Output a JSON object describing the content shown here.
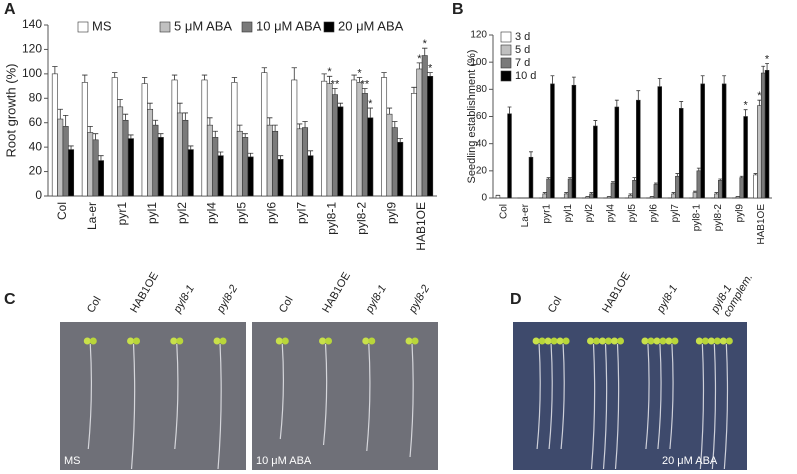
{
  "panels": [
    "A",
    "B",
    "C",
    "D"
  ],
  "chart_data": [
    {
      "type": "bar",
      "ylabel": "Root growth (%)",
      "legend": "top",
      "categories": [
        "Col",
        "La-er",
        "pyr1",
        "pyl1",
        "pyl2",
        "pyl4",
        "pyl5",
        "pyl6",
        "pyl7",
        "pyl8-1",
        "pyl8-2",
        "pyl9",
        "HAB1OE"
      ],
      "ylim": [
        0,
        140
      ],
      "yticks": [
        0,
        20,
        40,
        60,
        80,
        100,
        120,
        140
      ],
      "grid": false,
      "series": [
        {
          "name": "MS",
          "color": "#ffffff",
          "values": [
            100,
            93,
            97,
            92,
            95,
            95,
            93,
            101,
            95,
            94,
            95,
            97,
            84
          ],
          "errors": [
            6,
            6,
            4,
            5,
            4,
            4,
            4,
            4,
            10,
            6,
            4,
            4,
            5
          ],
          "significance": [
            null,
            null,
            null,
            null,
            null,
            null,
            null,
            null,
            null,
            null,
            null,
            null,
            null
          ]
        },
        {
          "name": "5 μM ABA",
          "color": "#c0c0c0",
          "values": [
            63,
            52,
            73,
            71,
            68,
            58,
            53,
            58,
            55,
            92,
            93,
            67,
            104
          ],
          "errors": [
            8,
            5,
            6,
            5,
            8,
            6,
            5,
            6,
            4,
            6,
            4,
            5,
            5
          ],
          "significance": [
            null,
            null,
            null,
            null,
            null,
            null,
            null,
            null,
            null,
            "*",
            "*",
            null,
            "*"
          ]
        },
        {
          "name": "10 μM ABA",
          "color": "#7a7a7a",
          "values": [
            57,
            46,
            62,
            58,
            62,
            48,
            48,
            53,
            56,
            83,
            84,
            56,
            115
          ],
          "errors": [
            9,
            5,
            5,
            4,
            6,
            5,
            3,
            5,
            5,
            5,
            4,
            5,
            6
          ],
          "significance": [
            null,
            null,
            null,
            null,
            null,
            null,
            null,
            null,
            null,
            "**",
            "**",
            null,
            "*"
          ]
        },
        {
          "name": "20 μM ABA",
          "color": "#000000",
          "values": [
            38,
            29,
            47,
            48,
            38,
            33,
            32,
            30,
            33,
            73,
            64,
            44,
            98
          ],
          "errors": [
            3,
            4,
            3,
            3,
            3,
            3,
            3,
            3,
            4,
            3,
            8,
            3,
            3
          ],
          "significance": [
            null,
            null,
            null,
            null,
            null,
            null,
            null,
            null,
            null,
            null,
            "*",
            null,
            "*"
          ]
        }
      ]
    },
    {
      "type": "bar",
      "ylabel": "Seedling establishment (%)",
      "legend": "upper left",
      "categories": [
        "Col",
        "La-er",
        "pyr1",
        "pyl1",
        "pyl2",
        "pyl4",
        "pyl5",
        "pyl6",
        "pyl7",
        "pyl8-1",
        "pyl8-2",
        "pyl9",
        "HAB1OE"
      ],
      "ylim": [
        0,
        120
      ],
      "yticks": [
        0,
        20,
        40,
        60,
        80,
        100,
        120
      ],
      "grid": false,
      "series": [
        {
          "name": "3 d",
          "color": "#ffffff",
          "values": [
            2,
            0,
            0,
            0,
            0,
            0,
            0,
            0,
            0,
            0,
            0,
            0,
            17
          ],
          "errors": [
            0,
            0,
            0,
            0,
            0,
            0,
            0,
            0,
            0,
            0,
            0,
            0,
            1
          ],
          "significance": [
            null,
            null,
            null,
            null,
            null,
            null,
            null,
            null,
            null,
            null,
            null,
            null,
            null
          ]
        },
        {
          "name": "5 d",
          "color": "#c0c0c0",
          "values": [
            0,
            0,
            3,
            3,
            1,
            1,
            2,
            1,
            3,
            4,
            3,
            1,
            68
          ],
          "errors": [
            0,
            0,
            1,
            1,
            0,
            0,
            1,
            0,
            1,
            1,
            1,
            0,
            4
          ],
          "significance": [
            null,
            null,
            null,
            null,
            null,
            null,
            null,
            null,
            null,
            null,
            null,
            null,
            "*"
          ]
        },
        {
          "name": "7 d",
          "color": "#7a7a7a",
          "values": [
            0,
            0,
            14,
            14,
            3,
            11,
            13,
            10,
            16,
            20,
            13,
            15,
            92
          ],
          "errors": [
            0,
            0,
            1,
            1,
            1,
            1,
            2,
            1,
            2,
            2,
            1,
            1,
            5
          ],
          "significance": [
            null,
            null,
            null,
            null,
            null,
            null,
            null,
            null,
            null,
            null,
            null,
            null,
            null
          ]
        },
        {
          "name": "10 d",
          "color": "#000000",
          "values": [
            62,
            30,
            84,
            83,
            53,
            67,
            72,
            82,
            66,
            84,
            84,
            60,
            94
          ],
          "errors": [
            5,
            4,
            6,
            6,
            4,
            5,
            7,
            6,
            5,
            6,
            6,
            5,
            5
          ],
          "significance": [
            null,
            null,
            null,
            null,
            null,
            null,
            null,
            null,
            null,
            null,
            null,
            "*",
            "*"
          ]
        }
      ]
    }
  ],
  "photos": [
    {
      "labels": [
        "Col",
        "HAB1OE",
        "pyl8-1",
        "pyl8-2"
      ],
      "condition": "MS"
    },
    {
      "labels": [
        "Col",
        "HAB1OE",
        "pyl8-1",
        "pyl8-2"
      ],
      "condition": "10 μM ABA"
    },
    {
      "labels": [
        "Col",
        "HAB1OE",
        "pyl8-1",
        "pyl8-1"
      ],
      "note": "complem.",
      "condition": "20 μM ABA"
    }
  ]
}
